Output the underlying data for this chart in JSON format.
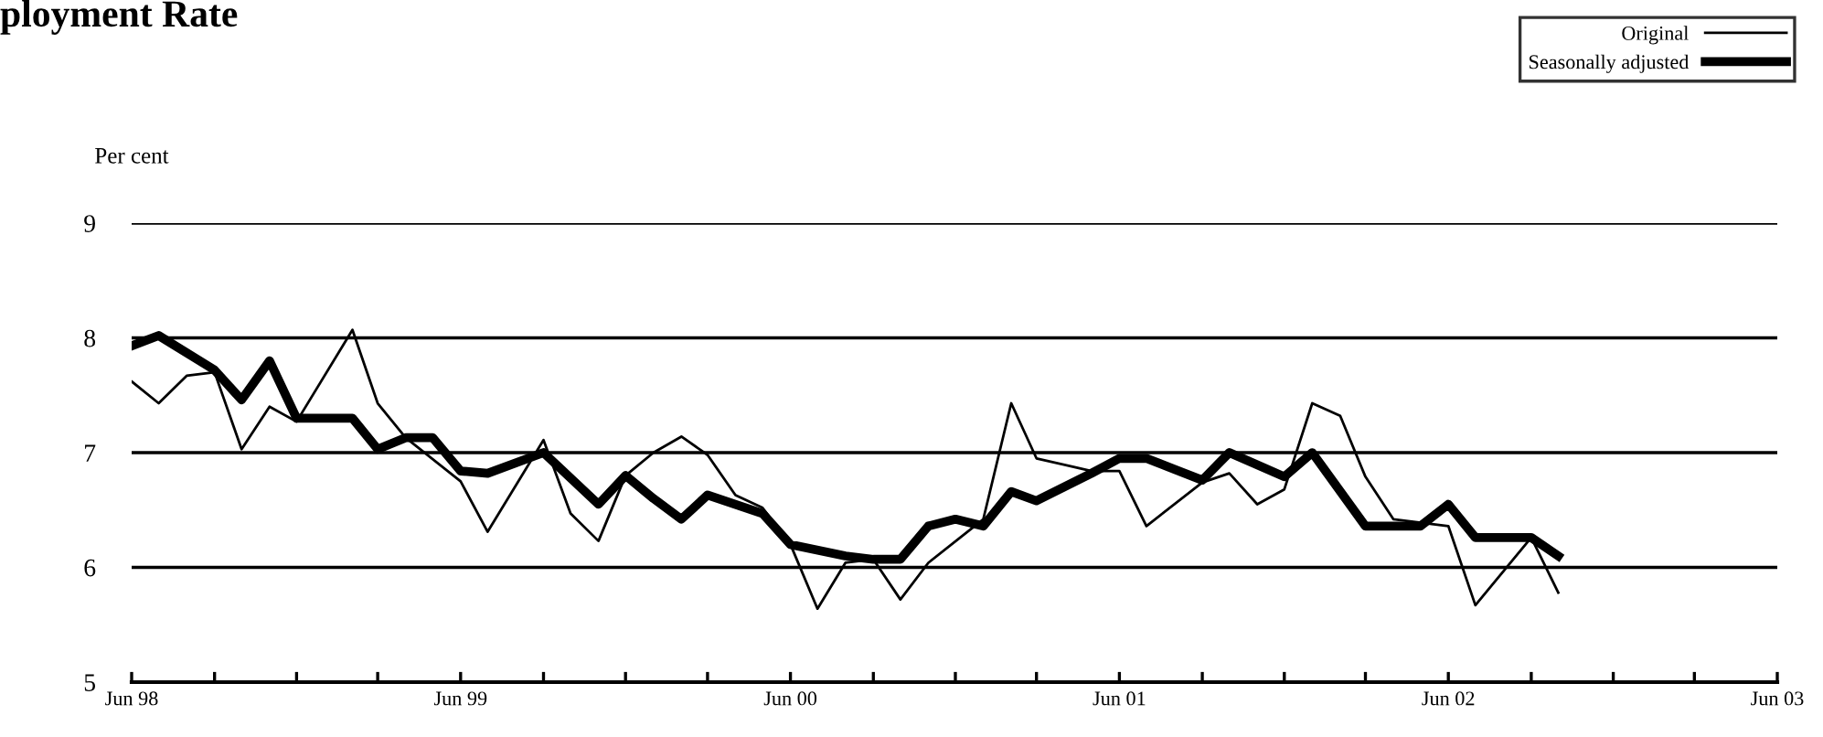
{
  "chart_data": {
    "type": "line",
    "title": "ployment Rate",
    "ylabel": "Per cent",
    "xlim": [
      "1998-06",
      "2003-06"
    ],
    "xticks": [
      {
        "value": "1998-06",
        "label": "Jun 98"
      },
      {
        "value": "1998-09",
        "label": null
      },
      {
        "value": "1998-12",
        "label": null
      },
      {
        "value": "1999-03",
        "label": null
      },
      {
        "value": "1999-06",
        "label": "Jun 99"
      },
      {
        "value": "1999-09",
        "label": null
      },
      {
        "value": "1999-12",
        "label": null
      },
      {
        "value": "2000-03",
        "label": null
      },
      {
        "value": "2000-06",
        "label": "Jun 00"
      },
      {
        "value": "2000-09",
        "label": null
      },
      {
        "value": "2000-12",
        "label": null
      },
      {
        "value": "2001-03",
        "label": null
      },
      {
        "value": "2001-06",
        "label": "Jun 01"
      },
      {
        "value": "2001-09",
        "label": null
      },
      {
        "value": "2001-12",
        "label": null
      },
      {
        "value": "2002-03",
        "label": null
      },
      {
        "value": "2002-06",
        "label": "Jun 02"
      },
      {
        "value": "2002-09",
        "label": null
      },
      {
        "value": "2002-12",
        "label": null
      },
      {
        "value": "2003-03",
        "label": null
      },
      {
        "value": "2003-06",
        "label": "Jun 03"
      }
    ],
    "ylim": [
      5,
      9
    ],
    "yticks": [
      5,
      6,
      7,
      8,
      9
    ],
    "grid": "y",
    "legend": "top right",
    "marker": "none",
    "series": [
      {
        "name": "Original",
        "color": "#000000",
        "x": [
          "1998-06",
          "1998-07",
          "1998-08",
          "1998-09",
          "1998-10",
          "1998-11",
          "1998-12",
          "1999-02",
          "1999-03",
          "1999-04",
          "1999-06",
          "1999-07",
          "1999-09",
          "1999-10",
          "1999-11",
          "1999-12",
          "2000-01",
          "2000-02",
          "2000-03",
          "2000-04",
          "2000-05",
          "2000-06",
          "2000-07",
          "2000-08",
          "2000-09",
          "2000-10",
          "2000-11",
          "2001-01",
          "2001-02",
          "2001-03",
          "2001-05",
          "2001-06",
          "2001-07",
          "2001-09",
          "2001-10",
          "2001-11",
          "2001-12",
          "2002-01",
          "2002-02",
          "2002-03",
          "2002-04",
          "2002-06",
          "2002-07",
          "2002-09",
          "2002-10"
        ],
        "values": [
          7.62,
          7.43,
          7.67,
          7.7,
          7.03,
          7.4,
          7.27,
          8.07,
          7.43,
          7.13,
          6.75,
          6.31,
          7.11,
          6.47,
          6.23,
          6.8,
          7.0,
          7.14,
          6.98,
          6.63,
          6.52,
          6.2,
          5.64,
          6.04,
          6.07,
          5.72,
          6.04,
          6.42,
          7.43,
          6.95,
          6.84,
          6.84,
          6.36,
          6.74,
          6.82,
          6.55,
          6.68,
          7.43,
          7.32,
          6.79,
          6.42,
          6.36,
          5.67,
          6.26,
          5.78
        ]
      },
      {
        "name": "Seasonally adjusted",
        "color": "#000000",
        "x": [
          "1998-06",
          "1998-07",
          "1998-09",
          "1998-10",
          "1998-11",
          "1998-12",
          "1999-02",
          "1999-03",
          "1999-04",
          "1999-05",
          "1999-06",
          "1999-07",
          "1999-09",
          "1999-11",
          "1999-12",
          "2000-01",
          "2000-02",
          "2000-03",
          "2000-05",
          "2000-06",
          "2000-08",
          "2000-09",
          "2000-10",
          "2000-11",
          "2000-12",
          "2001-01",
          "2001-02",
          "2001-03",
          "2001-05",
          "2001-06",
          "2001-07",
          "2001-09",
          "2001-10",
          "2001-12",
          "2002-01",
          "2002-03",
          "2002-05",
          "2002-06",
          "2002-07",
          "2002-09",
          "2002-10"
        ],
        "values": [
          7.93,
          8.02,
          7.72,
          7.46,
          7.8,
          7.3,
          7.3,
          7.03,
          7.13,
          7.13,
          6.84,
          6.82,
          7.0,
          6.55,
          6.8,
          6.6,
          6.42,
          6.63,
          6.47,
          6.2,
          6.1,
          6.07,
          6.07,
          6.36,
          6.42,
          6.36,
          6.66,
          6.58,
          6.82,
          6.95,
          6.95,
          6.76,
          7.0,
          6.79,
          7.0,
          6.36,
          6.36,
          6.55,
          6.26,
          6.26,
          6.1
        ]
      }
    ]
  }
}
